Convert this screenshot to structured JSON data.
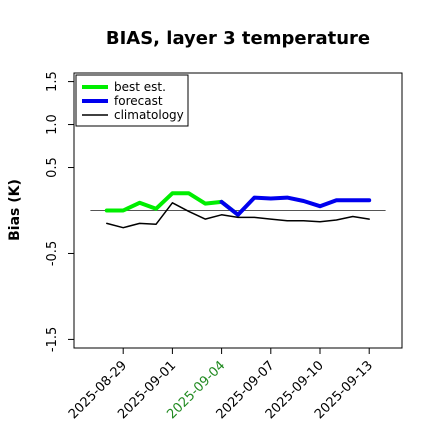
{
  "chart_data": {
    "type": "line",
    "title": "BIAS, layer 3 temperature",
    "ylabel": "Bias (K)",
    "xlabel": "",
    "ylim": [
      -1.6,
      1.6
    ],
    "yticks": [
      "-1.5",
      "-0.5",
      "0.5",
      "1.0",
      "1.5"
    ],
    "xlim": [
      "2025-08-26",
      "2025-09-15"
    ],
    "xticks": [
      "2025-08-29",
      "2025-09-01",
      "2025-09-04",
      "2025-09-07",
      "2025-09-10",
      "2025-09-13"
    ],
    "highlight_tick": "2025-09-04",
    "highlight_color": "#228b22",
    "zero_line": true,
    "legend_position": "top-left",
    "series": [
      {
        "name": "best est.",
        "color": "#00ee00",
        "x": [
          "2025-08-28",
          "2025-08-29",
          "2025-08-30",
          "2025-08-31",
          "2025-09-01",
          "2025-09-02",
          "2025-09-03",
          "2025-09-04",
          "2025-09-05"
        ],
        "y": [
          0.0,
          0.0,
          0.09,
          0.02,
          0.2,
          0.2,
          0.08,
          0.1,
          -0.05
        ]
      },
      {
        "name": "forecast",
        "color": "#0000ee",
        "x": [
          "2025-09-04",
          "2025-09-05",
          "2025-09-06",
          "2025-09-07",
          "2025-09-08",
          "2025-09-09",
          "2025-09-10",
          "2025-09-11",
          "2025-09-12",
          "2025-09-13"
        ],
        "y": [
          0.1,
          -0.05,
          0.15,
          0.14,
          0.15,
          0.11,
          0.05,
          0.12,
          0.12,
          0.12
        ]
      },
      {
        "name": "climatology",
        "color": "#000000",
        "x": [
          "2025-08-28",
          "2025-08-29",
          "2025-08-30",
          "2025-08-31",
          "2025-09-01",
          "2025-09-02",
          "2025-09-03",
          "2025-09-04",
          "2025-09-05",
          "2025-09-06",
          "2025-09-07",
          "2025-09-08",
          "2025-09-09",
          "2025-09-10",
          "2025-09-11",
          "2025-09-12",
          "2025-09-13"
        ],
        "y": [
          -0.15,
          -0.2,
          -0.15,
          -0.16,
          0.09,
          -0.01,
          -0.1,
          -0.05,
          -0.08,
          -0.08,
          -0.1,
          -0.12,
          -0.12,
          -0.13,
          -0.11,
          -0.07,
          -0.1
        ]
      }
    ]
  }
}
